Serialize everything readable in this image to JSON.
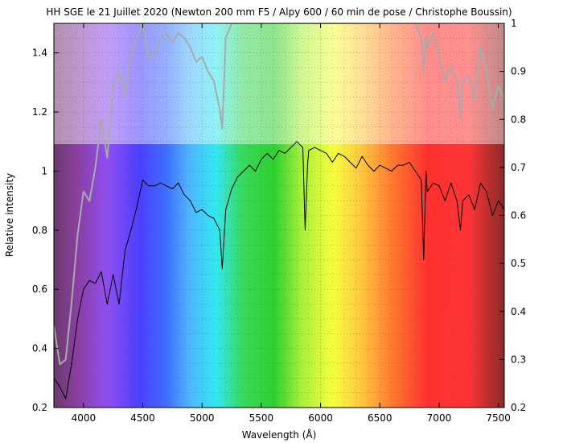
{
  "chart_data": {
    "type": "line",
    "title": "HH SGE le 21 Juillet 2020 (Newton 200 mm F5 / Alpy 600 / 60 min de pose / Christophe Boussin)",
    "xlabel": "Wavelength (Å)",
    "ylabel": "Relative intensity",
    "xlim": [
      3750,
      7550
    ],
    "ylim": [
      0.2,
      1.5
    ],
    "y2lim": [
      0.2,
      1.0
    ],
    "x_ticks": [
      4000,
      4500,
      5000,
      5500,
      6000,
      6500,
      7000,
      7500
    ],
    "y_ticks": [
      0.2,
      0.4,
      0.6,
      0.8,
      1.0,
      1.2,
      1.4
    ],
    "y2_ticks": [
      0.2,
      0.3,
      0.4,
      0.5,
      0.6,
      0.7,
      0.8,
      0.9,
      1.0
    ],
    "x_tick_labels": [
      "4000",
      "4500",
      "5000",
      "5500",
      "6000",
      "6500",
      "7000",
      "7500"
    ],
    "y_tick_labels": [
      "0.2",
      "0.4",
      "0.6",
      "0.8",
      "1",
      "1.2",
      "1.4"
    ],
    "y2_tick_labels": [
      "0.2",
      "0.3",
      "0.4",
      "0.5",
      "0.6",
      "0.7",
      "0.8",
      "0.9",
      "1"
    ],
    "grid": true,
    "background": "visible spectrum color bands",
    "series": [
      {
        "color": "#000000",
        "axis": "left",
        "x": [
          3750,
          3800,
          3850,
          3900,
          3950,
          4000,
          4050,
          4100,
          4150,
          4200,
          4250,
          4300,
          4350,
          4400,
          4450,
          4500,
          4550,
          4600,
          4650,
          4700,
          4750,
          4800,
          4850,
          4900,
          4950,
          5000,
          5050,
          5100,
          5150,
          5170,
          5200,
          5250,
          5300,
          5350,
          5400,
          5450,
          5500,
          5550,
          5600,
          5650,
          5700,
          5750,
          5800,
          5850,
          5870,
          5890,
          5900,
          5950,
          6000,
          6050,
          6100,
          6150,
          6200,
          6250,
          6300,
          6350,
          6400,
          6450,
          6500,
          6550,
          6600,
          6650,
          6700,
          6750,
          6800,
          6850,
          6870,
          6890,
          6900,
          6950,
          7000,
          7050,
          7100,
          7150,
          7180,
          7200,
          7250,
          7300,
          7350,
          7400,
          7450,
          7500,
          7550
        ],
        "y": [
          0.3,
          0.27,
          0.23,
          0.35,
          0.5,
          0.6,
          0.63,
          0.62,
          0.66,
          0.55,
          0.65,
          0.55,
          0.73,
          0.8,
          0.88,
          0.97,
          0.95,
          0.95,
          0.96,
          0.95,
          0.94,
          0.96,
          0.92,
          0.9,
          0.86,
          0.87,
          0.85,
          0.84,
          0.8,
          0.67,
          0.87,
          0.94,
          0.98,
          1.0,
          1.02,
          1.0,
          1.04,
          1.06,
          1.04,
          1.07,
          1.06,
          1.08,
          1.1,
          1.08,
          0.8,
          1.02,
          1.07,
          1.08,
          1.07,
          1.06,
          1.03,
          1.06,
          1.05,
          1.03,
          1.01,
          1.05,
          1.02,
          1.0,
          1.02,
          1.01,
          1.0,
          1.02,
          1.02,
          1.03,
          1.0,
          0.97,
          0.7,
          1.0,
          0.93,
          0.96,
          0.95,
          0.9,
          0.96,
          0.9,
          0.8,
          0.9,
          0.92,
          0.87,
          0.96,
          0.93,
          0.85,
          0.9,
          0.87
        ]
      },
      {
        "color": "#aaaaaa",
        "axis": "right",
        "x": [
          3750,
          3800,
          3850,
          3900,
          3950,
          4000,
          4050,
          4100,
          4150,
          4200,
          4250,
          4300,
          4350,
          4400,
          4450,
          4500,
          4550,
          4600,
          4650,
          4700,
          4750,
          4800,
          4850,
          4900,
          4950,
          5000,
          5050,
          5100,
          5150,
          5170,
          5200,
          5250,
          5300,
          5350,
          5400,
          5450,
          5500,
          5550,
          5600,
          5650,
          5700,
          5750,
          5800,
          5850,
          5870,
          5890,
          5900,
          5950,
          6000,
          6050,
          6100,
          6150,
          6200,
          6250,
          6300,
          6350,
          6400,
          6450,
          6500,
          6550,
          6600,
          6650,
          6700,
          6750,
          6800,
          6850,
          6870,
          6890,
          6900,
          6950,
          7000,
          7050,
          7100,
          7150,
          7180,
          7200,
          7250,
          7300,
          7350,
          7400,
          7450,
          7500,
          7550
        ],
        "y": [
          0.37,
          0.29,
          0.3,
          0.42,
          0.56,
          0.65,
          0.63,
          0.7,
          0.8,
          0.72,
          0.87,
          0.9,
          0.85,
          0.93,
          0.97,
          1.0,
          0.93,
          0.93,
          0.97,
          0.98,
          0.96,
          0.98,
          0.97,
          0.95,
          0.92,
          0.93,
          0.9,
          0.88,
          0.82,
          0.78,
          0.97,
          1.0,
          1.0,
          1.0,
          1.0,
          1.0,
          1.0,
          1.0,
          1.0,
          1.0,
          1.0,
          1.0,
          1.0,
          1.0,
          1.0,
          1.0,
          1.0,
          1.0,
          1.0,
          1.0,
          1.0,
          1.0,
          1.0,
          1.0,
          1.0,
          1.0,
          1.0,
          1.0,
          1.0,
          1.0,
          1.0,
          1.0,
          1.0,
          1.0,
          1.0,
          0.97,
          0.9,
          0.97,
          0.95,
          0.98,
          0.93,
          0.88,
          0.91,
          0.88,
          0.8,
          0.88,
          0.89,
          0.84,
          0.95,
          0.9,
          0.82,
          0.87,
          0.84
        ]
      }
    ]
  }
}
